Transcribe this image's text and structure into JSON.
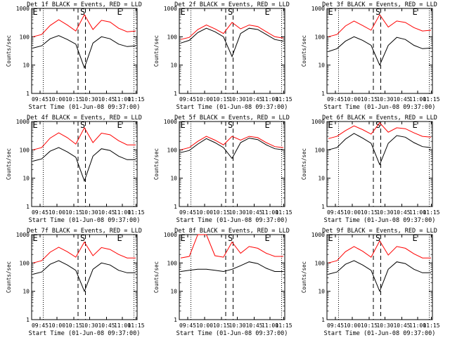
{
  "chart_data": [
    {
      "type": "line",
      "title": "Det 1f BLACK = Events, RED = LLD",
      "xlabel": "Start Time (01-Jun-08 09:37:00)",
      "ylabel": "Counts/sec",
      "x_ticks": [
        "09:45",
        "10:00",
        "10:15",
        "10:30",
        "10:45",
        "11:00",
        "11:15"
      ],
      "y_ticks": [
        "1",
        "10",
        "100",
        "1000"
      ],
      "ylim": [
        1,
        1000
      ],
      "y_scale": "log",
      "markers": [
        "E",
        "S",
        "E"
      ],
      "series": [
        {
          "color": "#000000",
          "values": [
            40,
            48,
            85,
            110,
            80,
            55,
            8,
            60,
            100,
            85,
            55,
            45,
            48
          ]
        },
        {
          "color": "#ff0000",
          "values": [
            100,
            120,
            250,
            400,
            260,
            160,
            600,
            180,
            380,
            330,
            200,
            150,
            160
          ]
        }
      ]
    },
    {
      "type": "line",
      "title": "Det 2f BLACK = Events, RED = LLD",
      "xlabel": "Start Time (01-Jun-08 09:37:00)",
      "ylabel": "Counts/sec",
      "x_ticks": [
        "09:45",
        "10:00",
        "10:15",
        "10:30",
        "10:45",
        "11:00",
        "11:15"
      ],
      "y_ticks": [
        "1",
        "10",
        "100",
        "1000"
      ],
      "ylim": [
        1,
        1000
      ],
      "y_scale": "log",
      "markers": [
        "E",
        "S",
        "E"
      ],
      "series": [
        {
          "color": "#000000",
          "values": [
            60,
            75,
            140,
            200,
            150,
            100,
            20,
            130,
            200,
            180,
            120,
            80,
            70
          ]
        },
        {
          "color": "#ff0000",
          "values": [
            80,
            95,
            180,
            260,
            190,
            130,
            320,
            190,
            260,
            230,
            150,
            100,
            90
          ]
        }
      ]
    },
    {
      "type": "line",
      "title": "Det 3f BLACK = Events, RED = LLD",
      "xlabel": "Start Time (01-Jun-08 09:37:00)",
      "ylabel": "Counts/sec",
      "x_ticks": [
        "09:45",
        "10:00",
        "10:15",
        "10:30",
        "10:45",
        "11:00",
        "11:15"
      ],
      "y_ticks": [
        "1",
        "10",
        "100",
        "1000"
      ],
      "ylim": [
        1,
        1000
      ],
      "y_scale": "log",
      "markers": [
        "E",
        "S",
        "E"
      ],
      "series": [
        {
          "color": "#000000",
          "values": [
            30,
            38,
            70,
            100,
            75,
            50,
            10,
            50,
            95,
            80,
            50,
            38,
            40
          ]
        },
        {
          "color": "#ff0000",
          "values": [
            100,
            120,
            240,
            360,
            250,
            170,
            600,
            220,
            360,
            320,
            210,
            160,
            170
          ]
        }
      ]
    },
    {
      "type": "line",
      "title": "Det 4f BLACK = Events, RED = LLD",
      "xlabel": "Start Time (01-Jun-08 09:37:00)",
      "ylabel": "Counts/sec",
      "x_ticks": [
        "09:45",
        "10:00",
        "10:15",
        "10:30",
        "10:45",
        "11:00",
        "11:15"
      ],
      "y_ticks": [
        "1",
        "10",
        "100",
        "1000"
      ],
      "ylim": [
        1,
        1000
      ],
      "y_scale": "log",
      "markers": [
        "E",
        "S",
        "E"
      ],
      "series": [
        {
          "color": "#000000",
          "values": [
            40,
            48,
            90,
            120,
            85,
            55,
            8,
            60,
            110,
            95,
            60,
            45,
            45
          ]
        },
        {
          "color": "#ff0000",
          "values": [
            100,
            120,
            260,
            400,
            270,
            160,
            600,
            180,
            390,
            340,
            210,
            150,
            150
          ]
        }
      ]
    },
    {
      "type": "line",
      "title": "Det 5f BLACK = Events, RED = LLD",
      "xlabel": "Start Time (01-Jun-08 09:37:00)",
      "ylabel": "Counts/sec",
      "x_ticks": [
        "09:45",
        "10:00",
        "10:15",
        "10:30",
        "10:45",
        "11:00",
        "11:15"
      ],
      "y_ticks": [
        "1",
        "10",
        "100",
        "1000"
      ],
      "ylim": [
        1,
        1000
      ],
      "y_scale": "log",
      "markers": [
        "E",
        "S",
        "E"
      ],
      "series": [
        {
          "color": "#000000",
          "values": [
            80,
            95,
            160,
            250,
            180,
            120,
            50,
            180,
            260,
            230,
            150,
            110,
            100
          ]
        },
        {
          "color": "#ff0000",
          "values": [
            100,
            120,
            200,
            300,
            220,
            150,
            300,
            220,
            300,
            270,
            180,
            130,
            120
          ]
        }
      ]
    },
    {
      "type": "line",
      "title": "Det 6f BLACK = Events, RED = LLD",
      "xlabel": "Start Time (01-Jun-08 09:37:00)",
      "ylabel": "Counts/sec",
      "x_ticks": [
        "09:45",
        "10:00",
        "10:15",
        "10:30",
        "10:45",
        "11:00",
        "11:15"
      ],
      "y_ticks": [
        "1",
        "10",
        "100",
        "1000"
      ],
      "ylim": [
        1,
        1000
      ],
      "y_scale": "log",
      "markers": [
        "E",
        "S",
        "E"
      ],
      "series": [
        {
          "color": "#000000",
          "values": [
            100,
            120,
            240,
            380,
            260,
            170,
            30,
            170,
            320,
            280,
            180,
            130,
            120
          ]
        },
        {
          "color": "#ff0000",
          "values": [
            250,
            300,
            480,
            700,
            520,
            360,
            900,
            420,
            600,
            560,
            400,
            300,
            280
          ]
        }
      ]
    },
    {
      "type": "line",
      "title": "Det 7f BLACK = Events, RED = LLD",
      "xlabel": "Start Time (01-Jun-08 09:37:00)",
      "ylabel": "Counts/sec",
      "x_ticks": [
        "09:45",
        "10:00",
        "10:15",
        "10:30",
        "10:45",
        "11:00",
        "11:15"
      ],
      "y_ticks": [
        "1",
        "10",
        "100",
        "1000"
      ],
      "ylim": [
        1,
        1000
      ],
      "y_scale": "log",
      "markers": [
        "E",
        "S",
        "E"
      ],
      "series": [
        {
          "color": "#000000",
          "values": [
            40,
            48,
            90,
            120,
            85,
            55,
            10,
            60,
            100,
            85,
            55,
            45,
            45
          ]
        },
        {
          "color": "#ff0000",
          "values": [
            100,
            120,
            240,
            360,
            250,
            160,
            550,
            180,
            350,
            300,
            200,
            150,
            150
          ]
        }
      ]
    },
    {
      "type": "line",
      "title": "Det 8f BLACK = Events, RED = LLD",
      "xlabel": "Start Time (01-Jun-08 09:37:00)",
      "ylabel": "Counts/sec",
      "x_ticks": [
        "09:45",
        "10:00",
        "10:15",
        "10:30",
        "10:45",
        "11:00",
        "11:15"
      ],
      "y_ticks": [
        "1",
        "10",
        "100",
        "1000"
      ],
      "ylim": [
        1,
        1000
      ],
      "y_scale": "log",
      "markers": [
        "E",
        "S",
        "E"
      ],
      "series": [
        {
          "color": "#000000",
          "values": [
            50,
            55,
            60,
            60,
            55,
            50,
            60,
            80,
            110,
            95,
            65,
            50,
            50
          ]
        },
        {
          "color": "#ff0000",
          "values": [
            150,
            170,
            1000,
            1000,
            180,
            160,
            550,
            220,
            380,
            330,
            220,
            170,
            170
          ]
        }
      ]
    },
    {
      "type": "line",
      "title": "Det 9f BLACK = Events, RED = LLD",
      "xlabel": "Start Time (01-Jun-08 09:37:00)",
      "ylabel": "Counts/sec",
      "x_ticks": [
        "09:45",
        "10:00",
        "10:15",
        "10:30",
        "10:45",
        "11:00",
        "11:15"
      ],
      "y_ticks": [
        "1",
        "10",
        "100",
        "1000"
      ],
      "ylim": [
        1,
        1000
      ],
      "y_scale": "log",
      "markers": [
        "E",
        "S",
        "E"
      ],
      "series": [
        {
          "color": "#000000",
          "values": [
            40,
            48,
            90,
            120,
            85,
            55,
            10,
            60,
            110,
            95,
            60,
            45,
            45
          ]
        },
        {
          "color": "#ff0000",
          "values": [
            100,
            120,
            250,
            380,
            260,
            160,
            600,
            190,
            380,
            330,
            210,
            150,
            150
          ]
        }
      ]
    }
  ]
}
